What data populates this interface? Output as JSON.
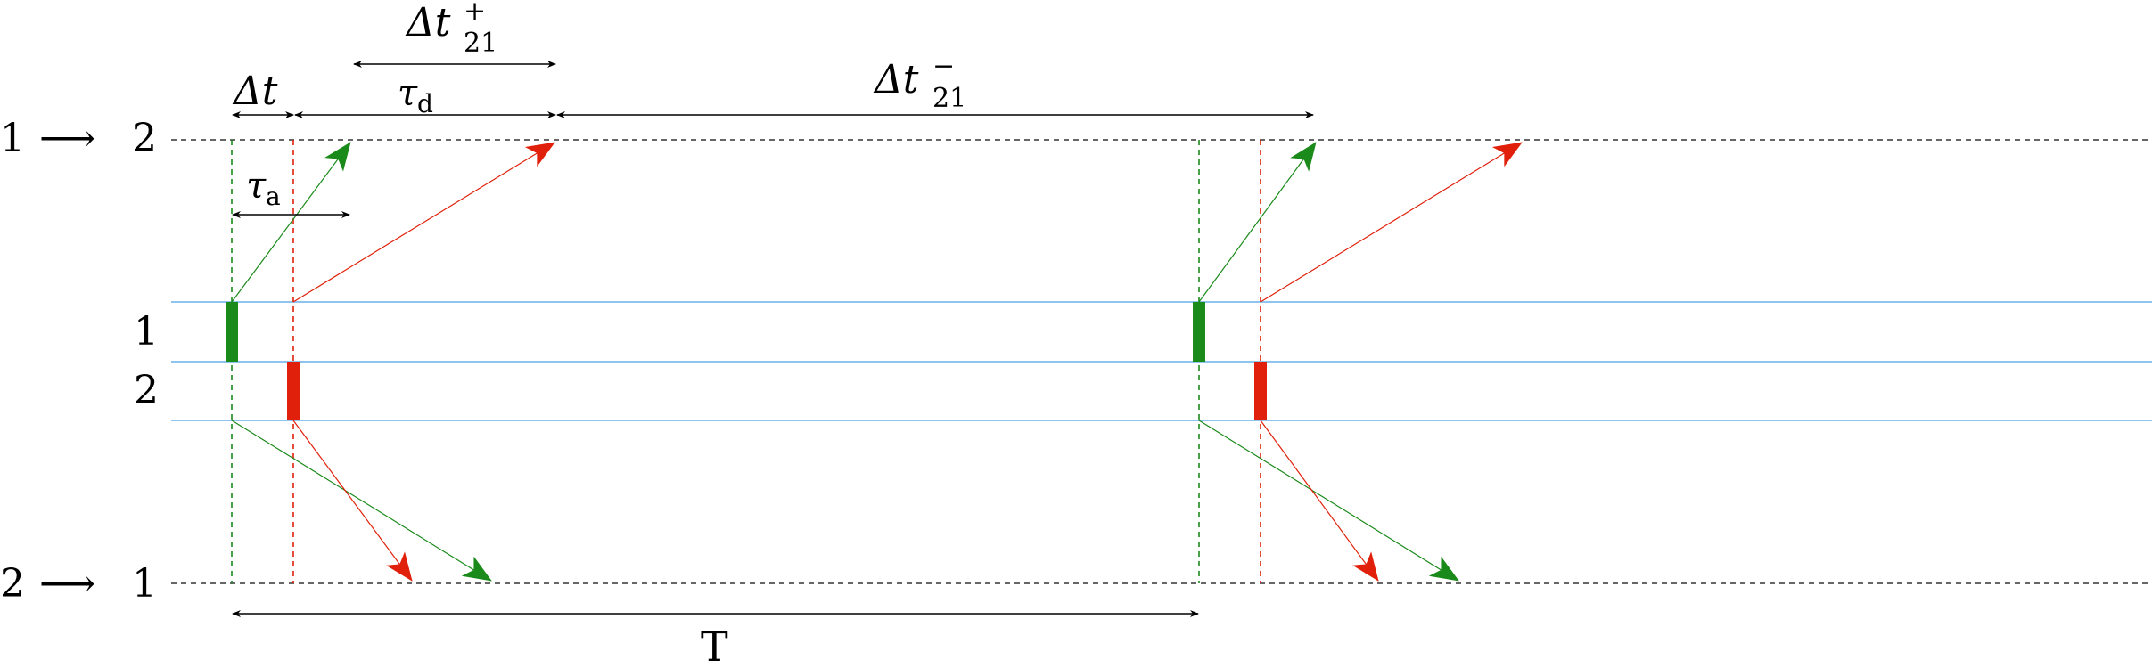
{
  "labels": {
    "row_top_from": "1",
    "row_top_to": "2",
    "row_bottom_from": "2",
    "row_bottom_to": "1",
    "arrow_glyph": "⟶",
    "lane_1": "1",
    "lane_2": "2",
    "delta_t_symbol": "Δt",
    "tau": "τ",
    "tau_a_sub": "a",
    "tau_d_sub": "d",
    "delta_t21_symbol": "Δt",
    "delta_t21_sub": "21",
    "plus_sup": "+",
    "minus_sup": "−",
    "period": "T"
  },
  "colors": {
    "green": "#1a8a1a",
    "red": "#e0200a",
    "lane_line": "#8ec5f0",
    "dashed_line": "#333333",
    "black": "#000000"
  }
}
